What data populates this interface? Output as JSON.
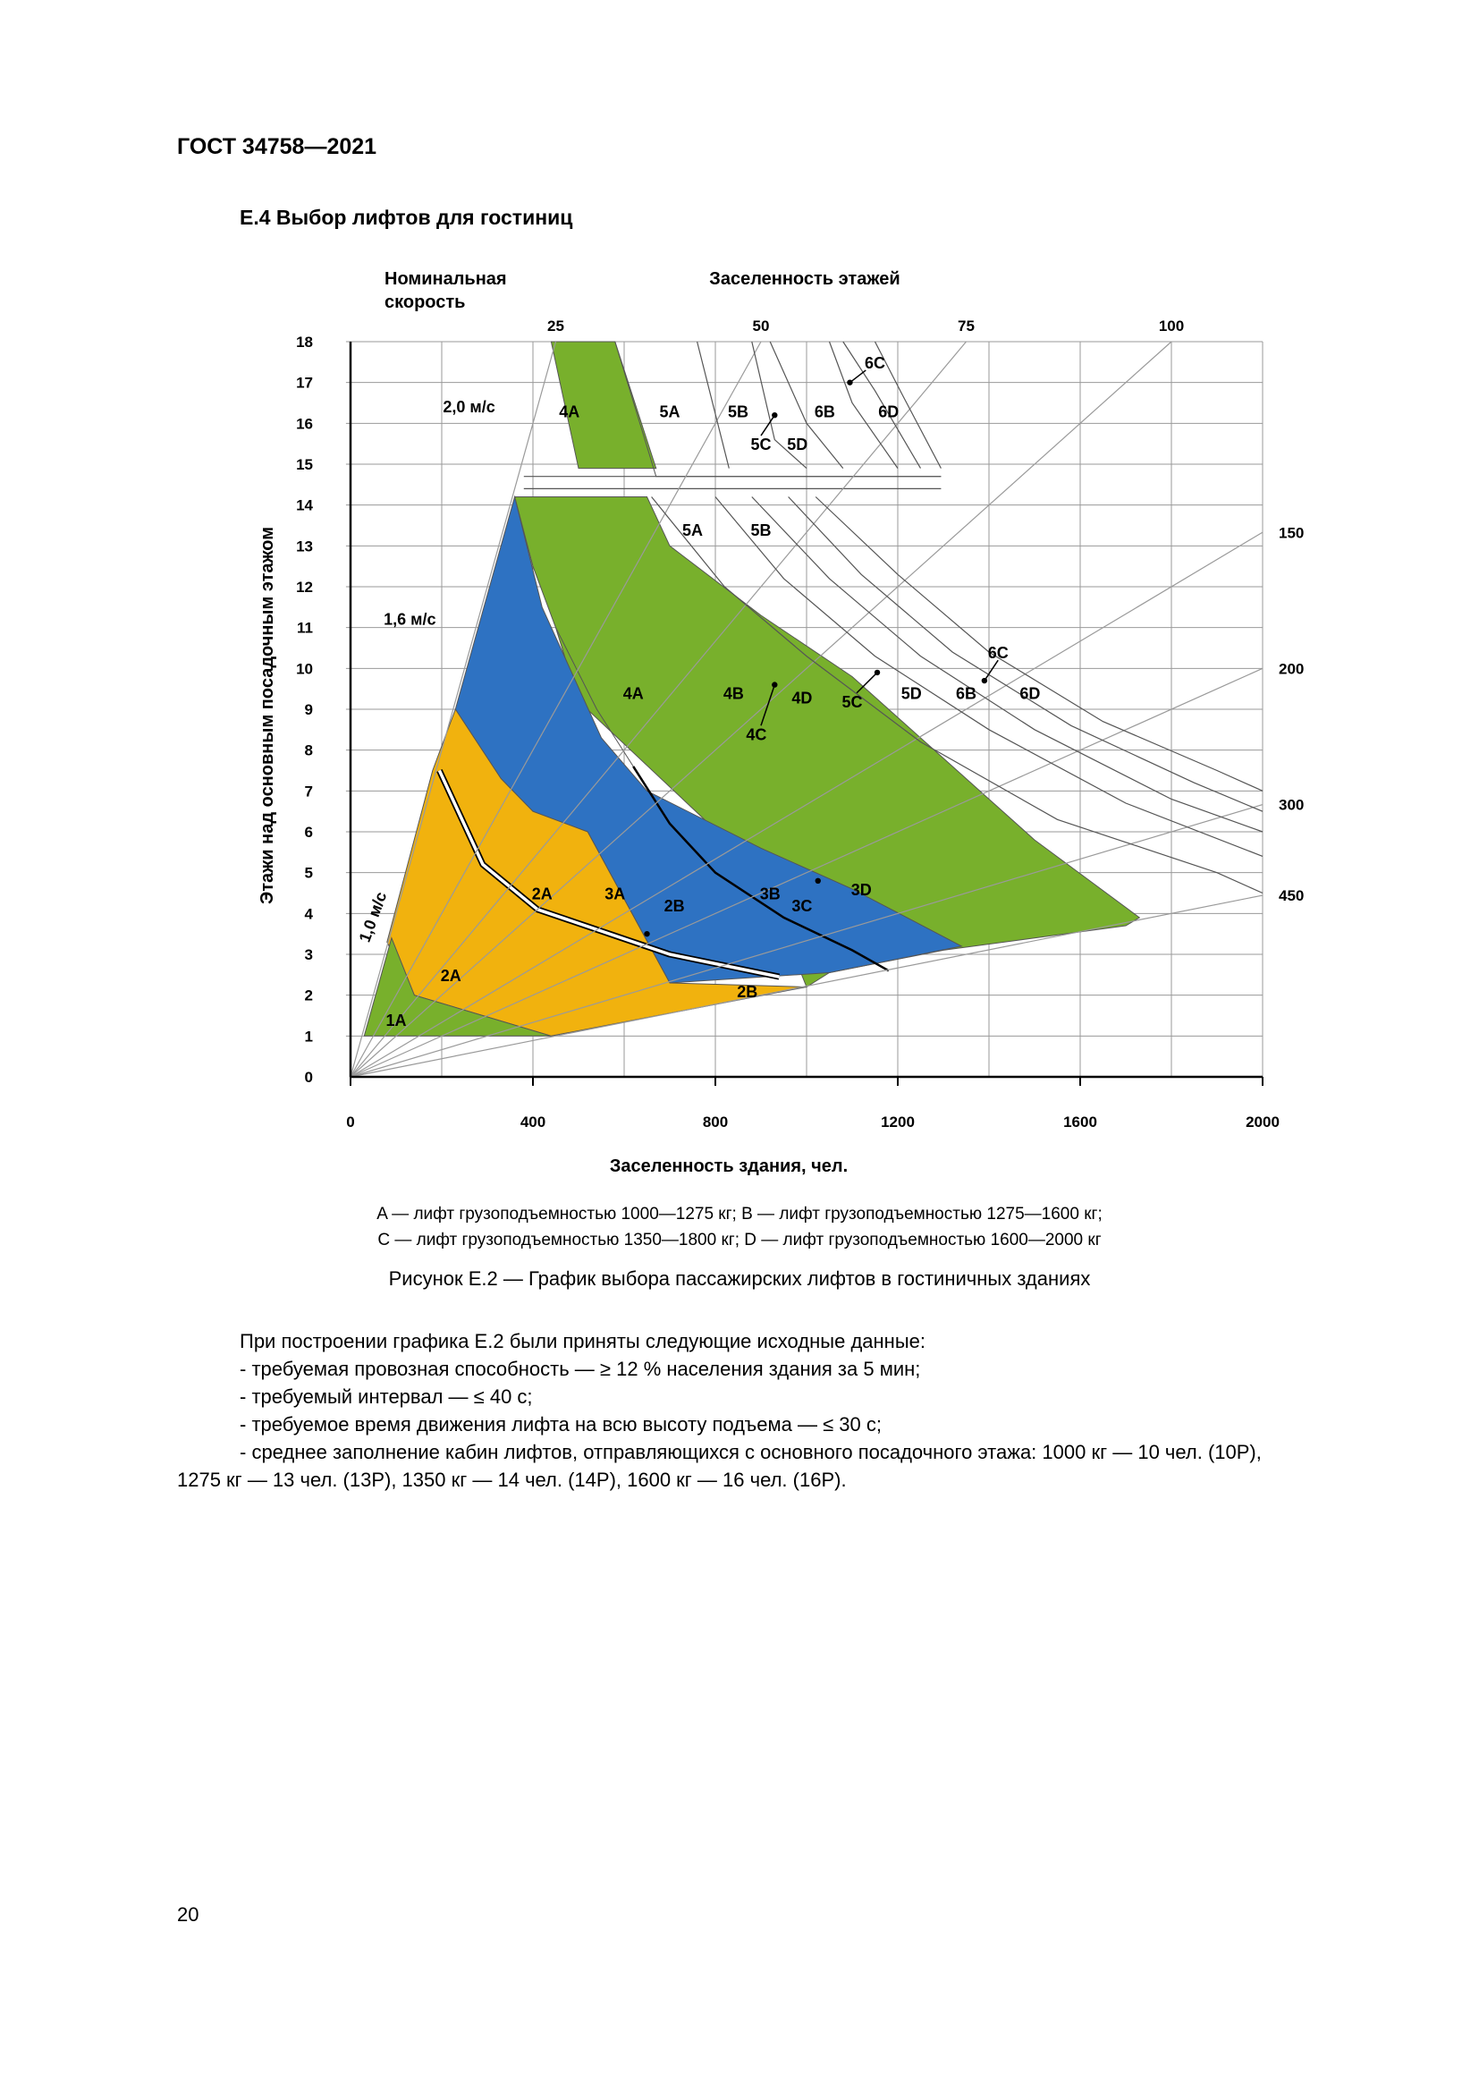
{
  "header": {
    "standard": "ГОСТ 34758—2021"
  },
  "section": {
    "title": "Е.4 Выбор лифтов для гостиниц"
  },
  "chart_data": {
    "type": "area",
    "title": "",
    "xlabel": "Заселенность здания, чел.",
    "ylabel": "Этажи над основным посадочным этажом",
    "top_axis_label": "Заселенность этажей",
    "speed_column_label": [
      "Номинальная",
      "скорость"
    ],
    "x_ticks": [
      "0",
      "400",
      "800",
      "1200",
      "1600",
      "2000"
    ],
    "y_ticks": [
      "0",
      "1",
      "2",
      "3",
      "4",
      "5",
      "6",
      "7",
      "8",
      "9",
      "10",
      "11",
      "12",
      "13",
      "14",
      "15",
      "16",
      "17",
      "18"
    ],
    "xlim": [
      0,
      2000
    ],
    "ylim": [
      0,
      18
    ],
    "grid": true,
    "floor_occupancy_rays": [
      "25",
      "50",
      "75",
      "100",
      "150",
      "200",
      "300",
      "450"
    ],
    "speed_labels": [
      "2,0 м/с",
      "1,6 м/с",
      "1,0 м/с"
    ],
    "zone_labels": [
      "4A",
      "5A",
      "5B",
      "5C",
      "5D",
      "6B",
      "6C",
      "6D",
      "5A",
      "5B",
      "4A",
      "4B",
      "4C",
      "4D",
      "5C",
      "5D",
      "6B",
      "6C",
      "6D",
      "2A",
      "3A",
      "2B",
      "3B",
      "3C",
      "3D",
      "2A",
      "2B",
      "1A"
    ],
    "colors": {
      "green": "#78b02c",
      "blue": "#2e72c2",
      "yellow": "#f1b20e",
      "lines": "#555555"
    }
  },
  "legend": {
    "line1": "A — лифт грузоподъемностью 1000—1275 кг; B — лифт грузоподъемностью 1275—1600 кг;",
    "line2": "C — лифт грузоподъемностью 1350—1800 кг; D — лифт грузоподъемностью 1600—2000 кг"
  },
  "caption": "Рисунок Е.2 — График выбора пассажирских лифтов в гостиничных зданиях",
  "body": {
    "intro": "При построении графика Е.2 были приняты следующие исходные данные:",
    "items": [
      "-  требуемая провозная способность — ≥ 12 % населения здания за 5 мин;",
      "-  требуемый интервал — ≤ 40 с;",
      "-  требуемое время движения лифта на всю высоту подъема — ≤ 30 с;",
      "-  среднее заполнение кабин лифтов, отправляющихся с основного посадочного этажа: 1000 кг — 10 чел. (10P),"
    ],
    "last_line": "1275 кг — 13 чел. (13P), 1350 кг — 14 чел. (14P), 1600 кг — 16 чел. (16P)."
  },
  "page_number": "20"
}
